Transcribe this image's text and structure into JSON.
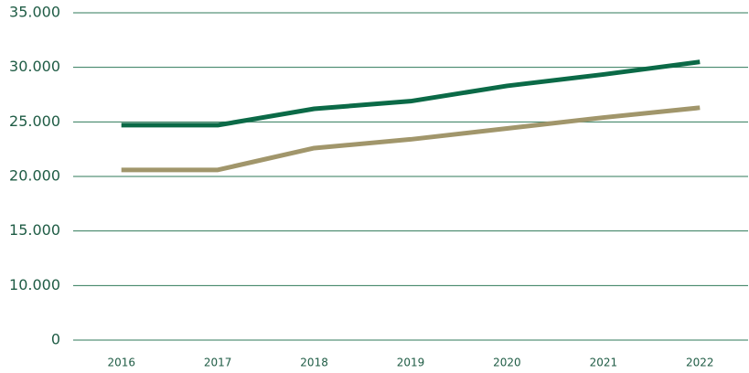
{
  "chart_data": {
    "type": "line",
    "categories": [
      "2016",
      "2017",
      "2018",
      "2019",
      "2020",
      "2021",
      "2022"
    ],
    "series": [
      {
        "color": "#0b6a47",
        "values": [
          24700,
          24700,
          26200,
          26900,
          28300,
          29350,
          30500
        ]
      },
      {
        "color": "#a1966b",
        "values": [
          20600,
          20600,
          22600,
          23400,
          24400,
          25400,
          26300
        ]
      }
    ],
    "ylim": [
      0,
      35000
    ],
    "yticks": [
      0,
      {
        "value": 10000,
        "label": "10.000"
      },
      {
        "value": 15000,
        "label": "15.000"
      },
      {
        "value": 20000,
        "label": "20.000"
      },
      {
        "value": 25000,
        "label": "25.000"
      },
      {
        "value": 30000,
        "label": "30.000"
      },
      {
        "value": 35000,
        "label": "35.000"
      }
    ],
    "grid": true
  }
}
